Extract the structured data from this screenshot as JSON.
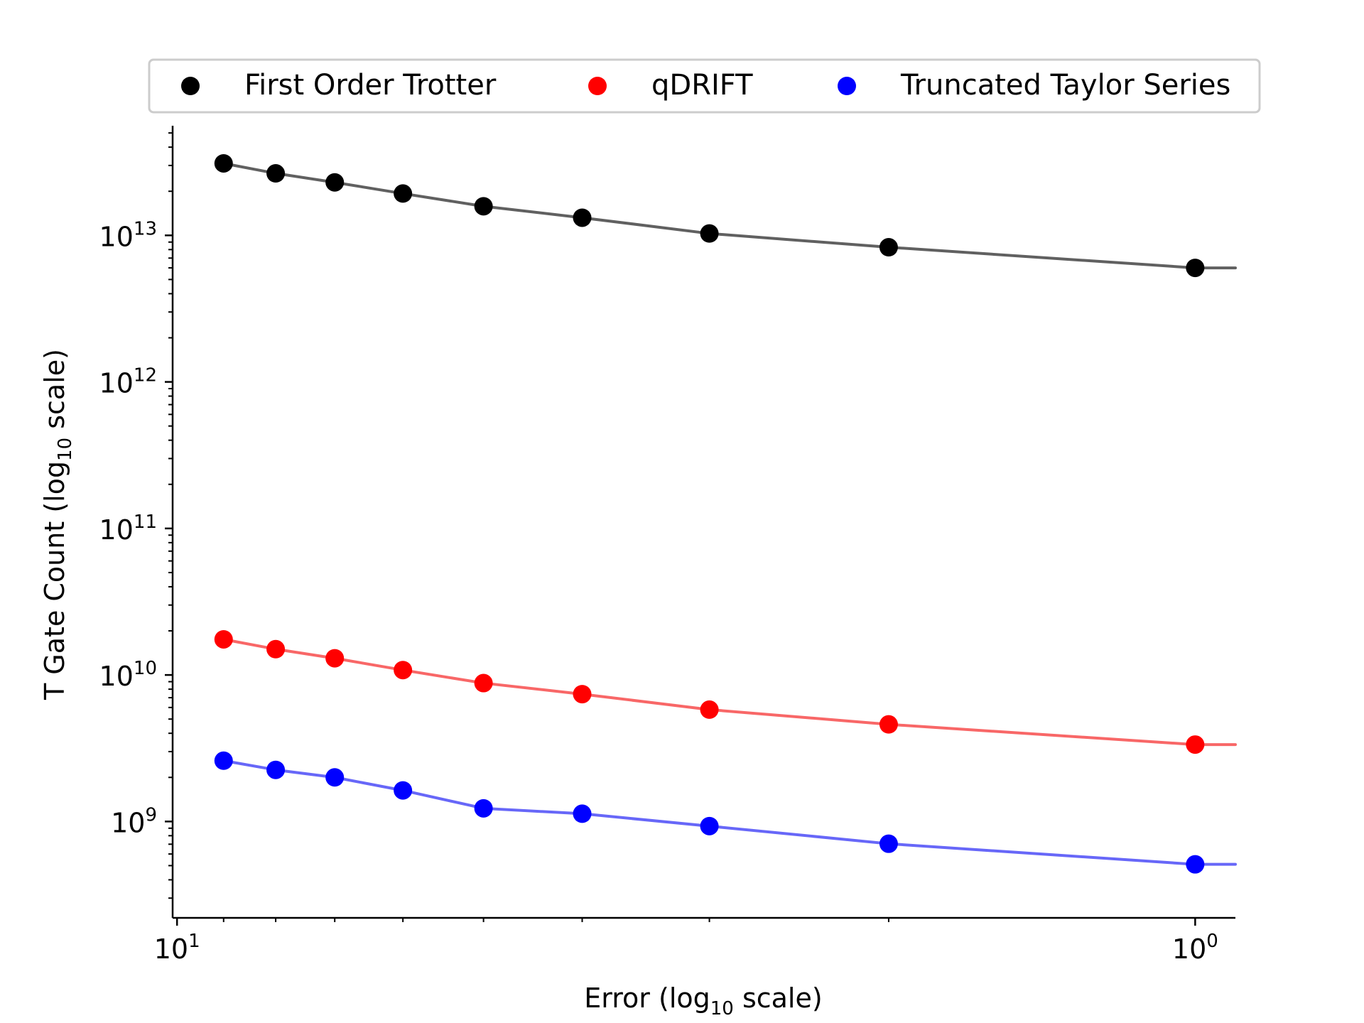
{
  "chart_data": {
    "type": "line",
    "xlabel": {
      "main": "Error (log",
      "sub": "10",
      "tail": " scale)"
    },
    "ylabel": {
      "main": "T Gate Count (log",
      "sub": "10",
      "tail": " scale)"
    },
    "x_scale": "log",
    "y_scale": "log",
    "x_inverted": true,
    "xlim": [
      10.1,
      0.913
    ],
    "ylim": [
      220000000.0,
      56000000000000.0
    ],
    "x": [
      9.0,
      8.0,
      7.0,
      6.0,
      5.0,
      4.0,
      3.0,
      2.0,
      1.0
    ],
    "x_ticks": [
      {
        "value": 10,
        "base": "10",
        "exp": "1"
      },
      {
        "value": 1,
        "base": "10",
        "exp": "0"
      }
    ],
    "y_ticks": [
      {
        "value": 1000000000.0,
        "base": "10",
        "exp": "9"
      },
      {
        "value": 10000000000.0,
        "base": "10",
        "exp": "10"
      },
      {
        "value": 100000000000.0,
        "base": "10",
        "exp": "11"
      },
      {
        "value": 1000000000000.0,
        "base": "10",
        "exp": "12"
      },
      {
        "value": 10000000000000.0,
        "base": "10",
        "exp": "13"
      }
    ],
    "grid": false,
    "legend": {
      "placement": "top-center-above",
      "columns": 3
    },
    "series": [
      {
        "name": "First Order Trotter",
        "marker_color": "#000000",
        "line_color": "#606060",
        "values": [
          31000000000000.0,
          26500000000000.0,
          23000000000000.0,
          19300000000000.0,
          15800000000000.0,
          13200000000000.0,
          10300000000000.0,
          8300000000000.0,
          6000000000000.0
        ]
      },
      {
        "name": "qDRIFT",
        "marker_color": "#ff0000",
        "line_color": "#f86767",
        "values": [
          17500000000.0,
          15000000000.0,
          13000000000.0,
          10800000000.0,
          8800000000.0,
          7400000000.0,
          5800000000.0,
          4600000000.0,
          3350000000.0
        ]
      },
      {
        "name": "Truncated Taylor Series",
        "marker_color": "#0000ff",
        "line_color": "#6767f8",
        "values": [
          2600000000.0,
          2250000000.0,
          2000000000.0,
          1630000000.0,
          1230000000.0,
          1130000000.0,
          930000000.0,
          705000000.0,
          510000000.0
        ]
      }
    ]
  }
}
